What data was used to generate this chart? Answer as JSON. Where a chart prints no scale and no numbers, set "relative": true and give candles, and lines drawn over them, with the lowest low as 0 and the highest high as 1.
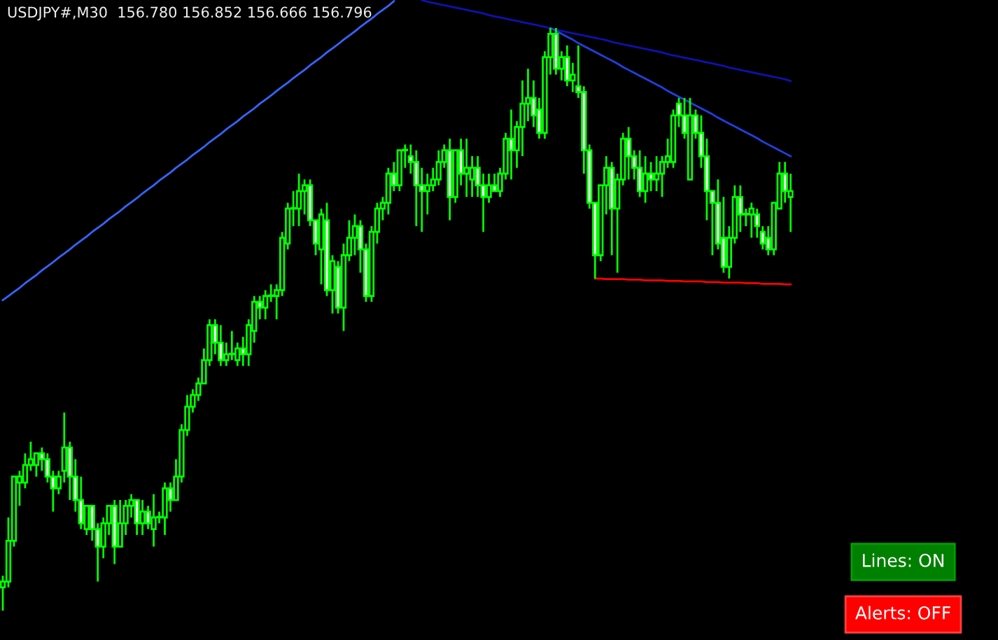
{
  "chart_data": {
    "type": "candlestick",
    "title": "USDJPY#,M30  156.780 156.852 156.666 156.796",
    "relative": true,
    "annotations": [
      "Lines: ON",
      "Alerts: OFF"
    ],
    "categories": [
      null,
      null,
      null,
      null,
      null,
      null,
      null,
      null,
      null,
      null,
      null,
      null,
      null,
      null,
      null,
      null,
      null,
      null,
      null,
      null,
      null,
      null,
      null,
      null,
      null,
      null,
      null,
      null,
      null,
      null,
      null,
      null,
      null,
      null,
      null,
      null,
      null,
      null,
      null,
      null,
      null,
      null,
      null,
      null,
      null,
      null,
      null,
      null,
      null,
      null,
      null,
      null,
      null,
      null,
      null,
      null,
      null,
      null,
      null,
      null,
      null,
      null,
      null,
      null,
      null,
      null,
      null,
      null,
      null,
      null,
      null,
      null,
      null,
      null,
      null,
      null,
      null,
      null,
      null,
      null,
      null,
      null,
      null,
      null,
      null,
      null,
      null,
      null,
      null,
      null,
      null,
      null,
      null,
      null,
      null,
      null,
      null,
      null,
      null,
      null,
      null,
      null,
      null,
      null,
      null,
      null,
      null,
      null,
      null,
      null,
      null,
      null,
      null,
      null,
      null,
      null,
      null,
      null,
      null,
      null,
      null,
      null,
      null,
      null,
      null,
      null,
      null,
      null,
      null,
      null,
      null,
      null,
      null,
      null,
      null,
      null,
      null,
      null,
      null,
      null,
      null,
      null
    ],
    "ohlc": [
      [
        0.04,
        0.06,
        0.0,
        0.05
      ],
      [
        0.05,
        0.16,
        0.04,
        0.12
      ],
      [
        0.12,
        0.23,
        0.11,
        0.23
      ],
      [
        0.22,
        0.24,
        0.18,
        0.23
      ],
      [
        0.22,
        0.27,
        0.21,
        0.25
      ],
      [
        0.25,
        0.29,
        0.24,
        0.26
      ],
      [
        0.25,
        0.27,
        0.23,
        0.27
      ],
      [
        0.27,
        0.28,
        0.24,
        0.26
      ],
      [
        0.26,
        0.27,
        0.22,
        0.23
      ],
      [
        0.23,
        0.24,
        0.17,
        0.21
      ],
      [
        0.21,
        0.24,
        0.2,
        0.23
      ],
      [
        0.24,
        0.34,
        0.22,
        0.28
      ],
      [
        0.28,
        0.29,
        0.19,
        0.23
      ],
      [
        0.23,
        0.26,
        0.17,
        0.19
      ],
      [
        0.19,
        0.23,
        0.14,
        0.15
      ],
      [
        0.14,
        0.18,
        0.13,
        0.18
      ],
      [
        0.18,
        0.18,
        0.12,
        0.14
      ],
      [
        0.14,
        0.15,
        0.05,
        0.11
      ],
      [
        0.11,
        0.16,
        0.09,
        0.15
      ],
      [
        0.15,
        0.18,
        0.13,
        0.18
      ],
      [
        0.18,
        0.19,
        0.08,
        0.11
      ],
      [
        0.11,
        0.19,
        0.11,
        0.15
      ],
      [
        0.15,
        0.19,
        0.13,
        0.18
      ],
      [
        0.18,
        0.2,
        0.16,
        0.19
      ],
      [
        0.19,
        0.19,
        0.13,
        0.15
      ],
      [
        0.15,
        0.19,
        0.13,
        0.17
      ],
      [
        0.17,
        0.18,
        0.14,
        0.15
      ],
      [
        0.14,
        0.2,
        0.11,
        0.16
      ],
      [
        0.16,
        0.17,
        0.15,
        0.16
      ],
      [
        0.16,
        0.22,
        0.13,
        0.21
      ],
      [
        0.21,
        0.22,
        0.17,
        0.19
      ],
      [
        0.19,
        0.26,
        0.19,
        0.23
      ],
      [
        0.23,
        0.32,
        0.22,
        0.31
      ],
      [
        0.31,
        0.37,
        0.3,
        0.35
      ],
      [
        0.35,
        0.38,
        0.34,
        0.37
      ],
      [
        0.37,
        0.4,
        0.36,
        0.39
      ],
      [
        0.39,
        0.45,
        0.39,
        0.43
      ],
      [
        0.43,
        0.5,
        0.42,
        0.49
      ],
      [
        0.49,
        0.5,
        0.44,
        0.46
      ],
      [
        0.46,
        0.49,
        0.42,
        0.43
      ],
      [
        0.43,
        0.46,
        0.42,
        0.44
      ],
      [
        0.44,
        0.48,
        0.43,
        0.44
      ],
      [
        0.43,
        0.46,
        0.42,
        0.45
      ],
      [
        0.45,
        0.47,
        0.42,
        0.44
      ],
      [
        0.44,
        0.5,
        0.42,
        0.49
      ],
      [
        0.48,
        0.54,
        0.46,
        0.53
      ],
      [
        0.53,
        0.54,
        0.5,
        0.52
      ],
      [
        0.52,
        0.55,
        0.5,
        0.54
      ],
      [
        0.54,
        0.56,
        0.53,
        0.54
      ],
      [
        0.54,
        0.56,
        0.5,
        0.55
      ],
      [
        0.55,
        0.65,
        0.54,
        0.64
      ],
      [
        0.63,
        0.7,
        0.62,
        0.69
      ],
      [
        0.69,
        0.72,
        0.66,
        0.69
      ],
      [
        0.69,
        0.75,
        0.66,
        0.72
      ],
      [
        0.72,
        0.74,
        0.68,
        0.73
      ],
      [
        0.73,
        0.74,
        0.66,
        0.67
      ],
      [
        0.67,
        0.67,
        0.61,
        0.63
      ],
      [
        0.62,
        0.69,
        0.56,
        0.68
      ],
      [
        0.67,
        0.7,
        0.54,
        0.55
      ],
      [
        0.55,
        0.61,
        0.51,
        0.6
      ],
      [
        0.59,
        0.6,
        0.51,
        0.52
      ],
      [
        0.52,
        0.63,
        0.48,
        0.61
      ],
      [
        0.61,
        0.67,
        0.6,
        0.64
      ],
      [
        0.64,
        0.68,
        0.61,
        0.66
      ],
      [
        0.66,
        0.67,
        0.58,
        0.62
      ],
      [
        0.62,
        0.63,
        0.53,
        0.54
      ],
      [
        0.54,
        0.66,
        0.53,
        0.65
      ],
      [
        0.65,
        0.7,
        0.63,
        0.69
      ],
      [
        0.69,
        0.71,
        0.67,
        0.7
      ],
      [
        0.7,
        0.76,
        0.68,
        0.75
      ],
      [
        0.75,
        0.77,
        0.72,
        0.73
      ],
      [
        0.73,
        0.79,
        0.72,
        0.79
      ],
      [
        0.79,
        0.8,
        0.76,
        0.79
      ],
      [
        0.78,
        0.8,
        0.75,
        0.77
      ],
      [
        0.77,
        0.79,
        0.66,
        0.73
      ],
      [
        0.73,
        0.76,
        0.65,
        0.72
      ],
      [
        0.72,
        0.75,
        0.68,
        0.73
      ],
      [
        0.73,
        0.76,
        0.72,
        0.74
      ],
      [
        0.74,
        0.79,
        0.73,
        0.77
      ],
      [
        0.77,
        0.8,
        0.76,
        0.79
      ],
      [
        0.79,
        0.81,
        0.67,
        0.71
      ],
      [
        0.71,
        0.79,
        0.7,
        0.79
      ],
      [
        0.79,
        0.81,
        0.73,
        0.75
      ],
      [
        0.75,
        0.81,
        0.71,
        0.76
      ],
      [
        0.74,
        0.78,
        0.71,
        0.76
      ],
      [
        0.76,
        0.78,
        0.71,
        0.73
      ],
      [
        0.73,
        0.75,
        0.65,
        0.71
      ],
      [
        0.71,
        0.75,
        0.7,
        0.73
      ],
      [
        0.73,
        0.75,
        0.72,
        0.72
      ],
      [
        0.72,
        0.76,
        0.71,
        0.75
      ],
      [
        0.75,
        0.82,
        0.74,
        0.81
      ],
      [
        0.81,
        0.86,
        0.74,
        0.79
      ],
      [
        0.79,
        0.84,
        0.76,
        0.83
      ],
      [
        0.83,
        0.91,
        0.78,
        0.87
      ],
      [
        0.87,
        0.93,
        0.84,
        0.88
      ],
      [
        0.88,
        0.91,
        0.83,
        0.85
      ],
      [
        0.86,
        0.88,
        0.81,
        0.82
      ],
      [
        0.82,
        0.96,
        0.81,
        0.95
      ],
      [
        0.95,
        1.0,
        0.92,
        0.99
      ],
      [
        0.99,
        1.0,
        0.92,
        0.93
      ],
      [
        0.93,
        0.96,
        0.91,
        0.95
      ],
      [
        0.95,
        0.97,
        0.9,
        0.91
      ],
      [
        0.91,
        0.94,
        0.89,
        0.92
      ],
      [
        0.9,
        0.97,
        0.88,
        0.89
      ],
      [
        0.89,
        0.9,
        0.75,
        0.79
      ],
      [
        0.79,
        0.8,
        0.69,
        0.7
      ],
      [
        0.7,
        0.7,
        0.57,
        0.61
      ],
      [
        0.61,
        0.73,
        0.6,
        0.73
      ],
      [
        0.73,
        0.78,
        0.68,
        0.76
      ],
      [
        0.76,
        0.77,
        0.61,
        0.69
      ],
      [
        0.69,
        0.75,
        0.58,
        0.74
      ],
      [
        0.74,
        0.82,
        0.73,
        0.81
      ],
      [
        0.81,
        0.83,
        0.74,
        0.78
      ],
      [
        0.78,
        0.79,
        0.74,
        0.76
      ],
      [
        0.76,
        0.79,
        0.71,
        0.72
      ],
      [
        0.72,
        0.78,
        0.7,
        0.75
      ],
      [
        0.75,
        0.77,
        0.72,
        0.74
      ],
      [
        0.74,
        0.78,
        0.72,
        0.75
      ],
      [
        0.75,
        0.78,
        0.71,
        0.77
      ],
      [
        0.77,
        0.81,
        0.76,
        0.78
      ],
      [
        0.77,
        0.86,
        0.76,
        0.85
      ],
      [
        0.87,
        0.88,
        0.83,
        0.85
      ],
      [
        0.85,
        0.88,
        0.81,
        0.82
      ],
      [
        0.74,
        0.88,
        0.74,
        0.85
      ],
      [
        0.85,
        0.86,
        0.81,
        0.82
      ],
      [
        0.82,
        0.85,
        0.76,
        0.78
      ],
      [
        0.78,
        0.81,
        0.67,
        0.72
      ],
      [
        0.72,
        0.72,
        0.61,
        0.7
      ],
      [
        0.7,
        0.74,
        0.62,
        0.63
      ],
      [
        0.64,
        0.71,
        0.58,
        0.59
      ],
      [
        0.59,
        0.66,
        0.57,
        0.64
      ],
      [
        0.64,
        0.73,
        0.63,
        0.71
      ],
      [
        0.71,
        0.73,
        0.65,
        0.68
      ],
      [
        0.68,
        0.69,
        0.66,
        0.68
      ],
      [
        0.68,
        0.7,
        0.64,
        0.69
      ],
      [
        0.68,
        0.69,
        0.64,
        0.66
      ],
      [
        0.65,
        0.66,
        0.62,
        0.63
      ],
      [
        0.64,
        0.66,
        0.61,
        0.62
      ],
      [
        0.62,
        0.7,
        0.61,
        0.7
      ],
      [
        0.69,
        0.77,
        0.69,
        0.75
      ],
      [
        0.75,
        0.77,
        0.7,
        0.72
      ],
      [
        0.71,
        0.75,
        0.65,
        0.72
      ]
    ],
    "series": [
      {
        "type": "line",
        "color": "#3366ff",
        "values": [
          0.533,
          0.54,
          0.547,
          0.554,
          0.562,
          0.569,
          0.576,
          0.584,
          0.591,
          0.598,
          0.606,
          0.613,
          0.62,
          0.628,
          0.635,
          0.642,
          0.65,
          0.657,
          0.664,
          0.672,
          0.679,
          0.686,
          0.694,
          0.701,
          0.708,
          0.716,
          0.723,
          0.73,
          0.738,
          0.745,
          0.752,
          0.76,
          0.767,
          0.774,
          0.782,
          0.789,
          0.796,
          0.804,
          0.811,
          0.818,
          0.826,
          0.833,
          0.84,
          0.848,
          0.855,
          0.862,
          0.87,
          0.877,
          0.884,
          0.892,
          0.899,
          0.906,
          0.914,
          0.921,
          0.928,
          0.936,
          0.943,
          0.95,
          0.958,
          0.965,
          0.972,
          0.98,
          0.987,
          0.994,
          1.002,
          1.009,
          1.016,
          1.024,
          1.031,
          1.038,
          1.046,
          null,
          null,
          null,
          null,
          null,
          null,
          null,
          null,
          null,
          null,
          null,
          null,
          null,
          null,
          null,
          null,
          null,
          null,
          null,
          null,
          null,
          null,
          null,
          null,
          null,
          null,
          null,
          null,
          null,
          null,
          null,
          null,
          null,
          null,
          null,
          null,
          null,
          null,
          null,
          null,
          null,
          null,
          null,
          null,
          null,
          null,
          null,
          null,
          null,
          null,
          null,
          null,
          null,
          null,
          null,
          null,
          null,
          null,
          null,
          null,
          null,
          null,
          null,
          null,
          null,
          null,
          null,
          null,
          null,
          null,
          null
        ]
      },
      {
        "type": "line",
        "color": "#1010b0",
        "values": [
          null,
          null,
          null,
          null,
          null,
          null,
          null,
          null,
          null,
          null,
          null,
          null,
          null,
          null,
          null,
          null,
          null,
          null,
          null,
          null,
          null,
          null,
          null,
          null,
          null,
          null,
          null,
          null,
          null,
          null,
          null,
          null,
          null,
          null,
          null,
          null,
          null,
          null,
          null,
          null,
          null,
          null,
          null,
          null,
          null,
          null,
          null,
          null,
          null,
          null,
          null,
          null,
          null,
          null,
          null,
          null,
          null,
          null,
          null,
          null,
          null,
          null,
          null,
          null,
          null,
          null,
          null,
          null,
          null,
          null,
          null,
          null,
          null,
          null,
          null,
          1.048,
          1.045,
          1.043,
          1.041,
          1.039,
          1.037,
          1.035,
          1.033,
          1.031,
          1.029,
          1.027,
          1.025,
          1.022,
          1.02,
          1.018,
          1.016,
          1.014,
          1.012,
          1.01,
          1.008,
          1.006,
          1.004,
          1.002,
          0.999,
          0.997,
          0.995,
          0.993,
          0.991,
          0.989,
          0.987,
          0.985,
          0.983,
          0.981,
          0.979,
          0.976,
          0.974,
          0.972,
          0.97,
          0.968,
          0.966,
          0.964,
          0.962,
          0.96,
          0.958,
          0.955,
          0.953,
          0.951,
          0.949,
          0.947,
          0.945,
          0.943,
          0.941,
          0.939,
          0.937,
          0.935,
          0.932,
          0.93,
          0.928,
          0.926,
          0.924,
          0.922,
          0.92,
          0.918,
          0.916,
          0.914,
          0.912,
          0.909
        ]
      },
      {
        "type": "line",
        "color": "#2040e0",
        "values": [
          null,
          null,
          null,
          null,
          null,
          null,
          null,
          null,
          null,
          null,
          null,
          null,
          null,
          null,
          null,
          null,
          null,
          null,
          null,
          null,
          null,
          null,
          null,
          null,
          null,
          null,
          null,
          null,
          null,
          null,
          null,
          null,
          null,
          null,
          null,
          null,
          null,
          null,
          null,
          null,
          null,
          null,
          null,
          null,
          null,
          null,
          null,
          null,
          null,
          null,
          null,
          null,
          null,
          null,
          null,
          null,
          null,
          null,
          null,
          null,
          null,
          null,
          null,
          null,
          null,
          null,
          null,
          null,
          null,
          null,
          null,
          null,
          null,
          null,
          null,
          null,
          null,
          null,
          null,
          null,
          null,
          null,
          null,
          null,
          null,
          null,
          null,
          null,
          null,
          null,
          null,
          null,
          null,
          null,
          null,
          null,
          null,
          null,
          1.0,
          0.995,
          0.99,
          0.985,
          0.98,
          0.974,
          0.969,
          0.964,
          0.959,
          0.954,
          0.949,
          0.944,
          0.939,
          0.933,
          0.928,
          0.923,
          0.918,
          0.913,
          0.908,
          0.903,
          0.898,
          0.892,
          0.887,
          0.882,
          0.877,
          0.872,
          0.867,
          0.862,
          0.857,
          0.852,
          0.846,
          0.841,
          0.836,
          0.831,
          0.826,
          0.821,
          0.816,
          0.811,
          0.805,
          0.8,
          0.795,
          0.79,
          0.785,
          0.78
        ]
      },
      {
        "type": "line",
        "color": "#ff0000",
        "values": [
          null,
          null,
          null,
          null,
          null,
          null,
          null,
          null,
          null,
          null,
          null,
          null,
          null,
          null,
          null,
          null,
          null,
          null,
          null,
          null,
          null,
          null,
          null,
          null,
          null,
          null,
          null,
          null,
          null,
          null,
          null,
          null,
          null,
          null,
          null,
          null,
          null,
          null,
          null,
          null,
          null,
          null,
          null,
          null,
          null,
          null,
          null,
          null,
          null,
          null,
          null,
          null,
          null,
          null,
          null,
          null,
          null,
          null,
          null,
          null,
          null,
          null,
          null,
          null,
          null,
          null,
          null,
          null,
          null,
          null,
          null,
          null,
          null,
          null,
          null,
          null,
          null,
          null,
          null,
          null,
          null,
          null,
          null,
          null,
          null,
          null,
          null,
          null,
          null,
          null,
          null,
          null,
          null,
          null,
          null,
          null,
          null,
          null,
          null,
          null,
          null,
          null,
          null,
          null,
          null,
          null,
          0.57,
          0.57,
          0.569,
          0.569,
          0.569,
          0.569,
          0.568,
          0.568,
          0.568,
          0.567,
          0.567,
          0.567,
          0.567,
          0.566,
          0.566,
          0.566,
          0.565,
          0.565,
          0.565,
          0.565,
          0.564,
          0.564,
          0.564,
          0.563,
          0.563,
          0.563,
          0.563,
          0.562,
          0.562,
          0.562,
          0.561,
          0.561,
          0.561,
          0.561,
          0.56,
          0.56
        ]
      }
    ]
  }
}
